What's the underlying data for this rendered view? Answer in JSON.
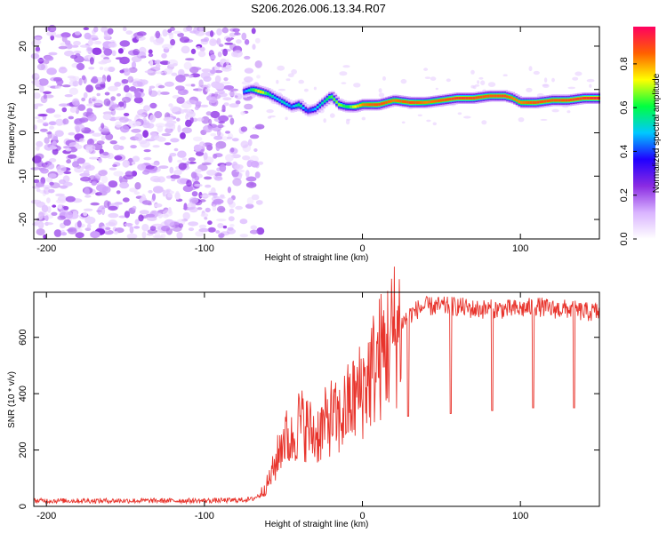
{
  "title": "S206.2026.006.13.34.R07",
  "chart_data": [
    {
      "type": "heatmap",
      "xlabel": "Height of straight line (km)",
      "ylabel": "Frequency (Hz)",
      "xlim": [
        -208,
        150
      ],
      "ylim": [
        -24.5,
        24.5
      ],
      "xticks": [
        -200,
        -100,
        0,
        100
      ],
      "yticks": [
        -20,
        -10,
        0,
        10,
        20
      ],
      "colorbar": {
        "label": "Normalized spectral amplitude",
        "range": [
          0.0,
          0.97
        ],
        "ticks": [
          0.0,
          0.2,
          0.4,
          0.6,
          0.8
        ],
        "colors": [
          "#ffffff",
          "#d9b3ff",
          "#8a2be2",
          "#2000ff",
          "#00c8ff",
          "#00ff40",
          "#ffff00",
          "#ff6000",
          "#ff0060"
        ]
      },
      "noise_region_x": [
        -208,
        -64
      ],
      "ridge": {
        "x": [
          -75,
          -70,
          -65,
          -60,
          -55,
          -50,
          -45,
          -40,
          -35,
          -30,
          -25,
          -20,
          -15,
          -10,
          -5,
          0,
          10,
          20,
          30,
          40,
          50,
          60,
          70,
          80,
          90,
          95,
          100,
          110,
          120,
          130,
          140,
          150
        ],
        "freq": [
          9.5,
          10,
          9.5,
          9,
          8,
          7,
          6,
          6.5,
          5,
          5.5,
          7,
          8.5,
          6.5,
          6,
          6,
          6.5,
          6.5,
          7.5,
          7,
          7,
          7.5,
          8,
          8,
          8.5,
          8.5,
          8,
          7,
          7,
          7.5,
          7.5,
          8,
          8
        ],
        "amplitude": [
          0.45,
          0.6,
          0.8,
          0.6,
          0.5,
          0.55,
          0.45,
          0.6,
          0.4,
          0.5,
          0.55,
          0.65,
          0.7,
          0.6,
          0.75,
          0.85,
          0.9,
          0.85,
          0.9,
          0.85,
          0.88,
          0.92,
          0.9,
          0.88,
          0.9,
          0.85,
          0.85,
          0.9,
          0.88,
          0.9,
          0.92,
          0.95
        ]
      }
    },
    {
      "type": "line",
      "xlabel": "Height of straight line (km)",
      "ylabel": "SNR (10 * v/v)",
      "xlim": [
        -208,
        150
      ],
      "ylim": [
        0,
        760
      ],
      "xticks": [
        -200,
        -100,
        0,
        100
      ],
      "yticks": [
        0,
        200,
        400,
        600
      ],
      "series": [
        {
          "name": "SNR",
          "color": "#e8342c",
          "x": [
            -208,
            -180,
            -150,
            -120,
            -100,
            -80,
            -70,
            -65,
            -60,
            -55,
            -50,
            -45,
            -40,
            -35,
            -30,
            -25,
            -20,
            -15,
            -10,
            -5,
            0,
            5,
            10,
            15,
            20,
            25,
            30,
            35,
            40,
            50,
            60,
            70,
            80,
            90,
            100,
            110,
            120,
            130,
            140,
            150
          ],
          "y": [
            20,
            20,
            20,
            20,
            20,
            22,
            25,
            40,
            80,
            150,
            250,
            230,
            300,
            280,
            250,
            280,
            320,
            300,
            350,
            380,
            420,
            470,
            520,
            560,
            610,
            650,
            680,
            700,
            710,
            710,
            710,
            700,
            700,
            700,
            700,
            710,
            700,
            700,
            690,
            690
          ]
        }
      ],
      "dips": [
        {
          "x": 29,
          "y": 320
        },
        {
          "x": 56,
          "y": 330
        },
        {
          "x": 82,
          "y": 340
        },
        {
          "x": 108,
          "y": 350
        },
        {
          "x": 134,
          "y": 350
        }
      ]
    }
  ]
}
